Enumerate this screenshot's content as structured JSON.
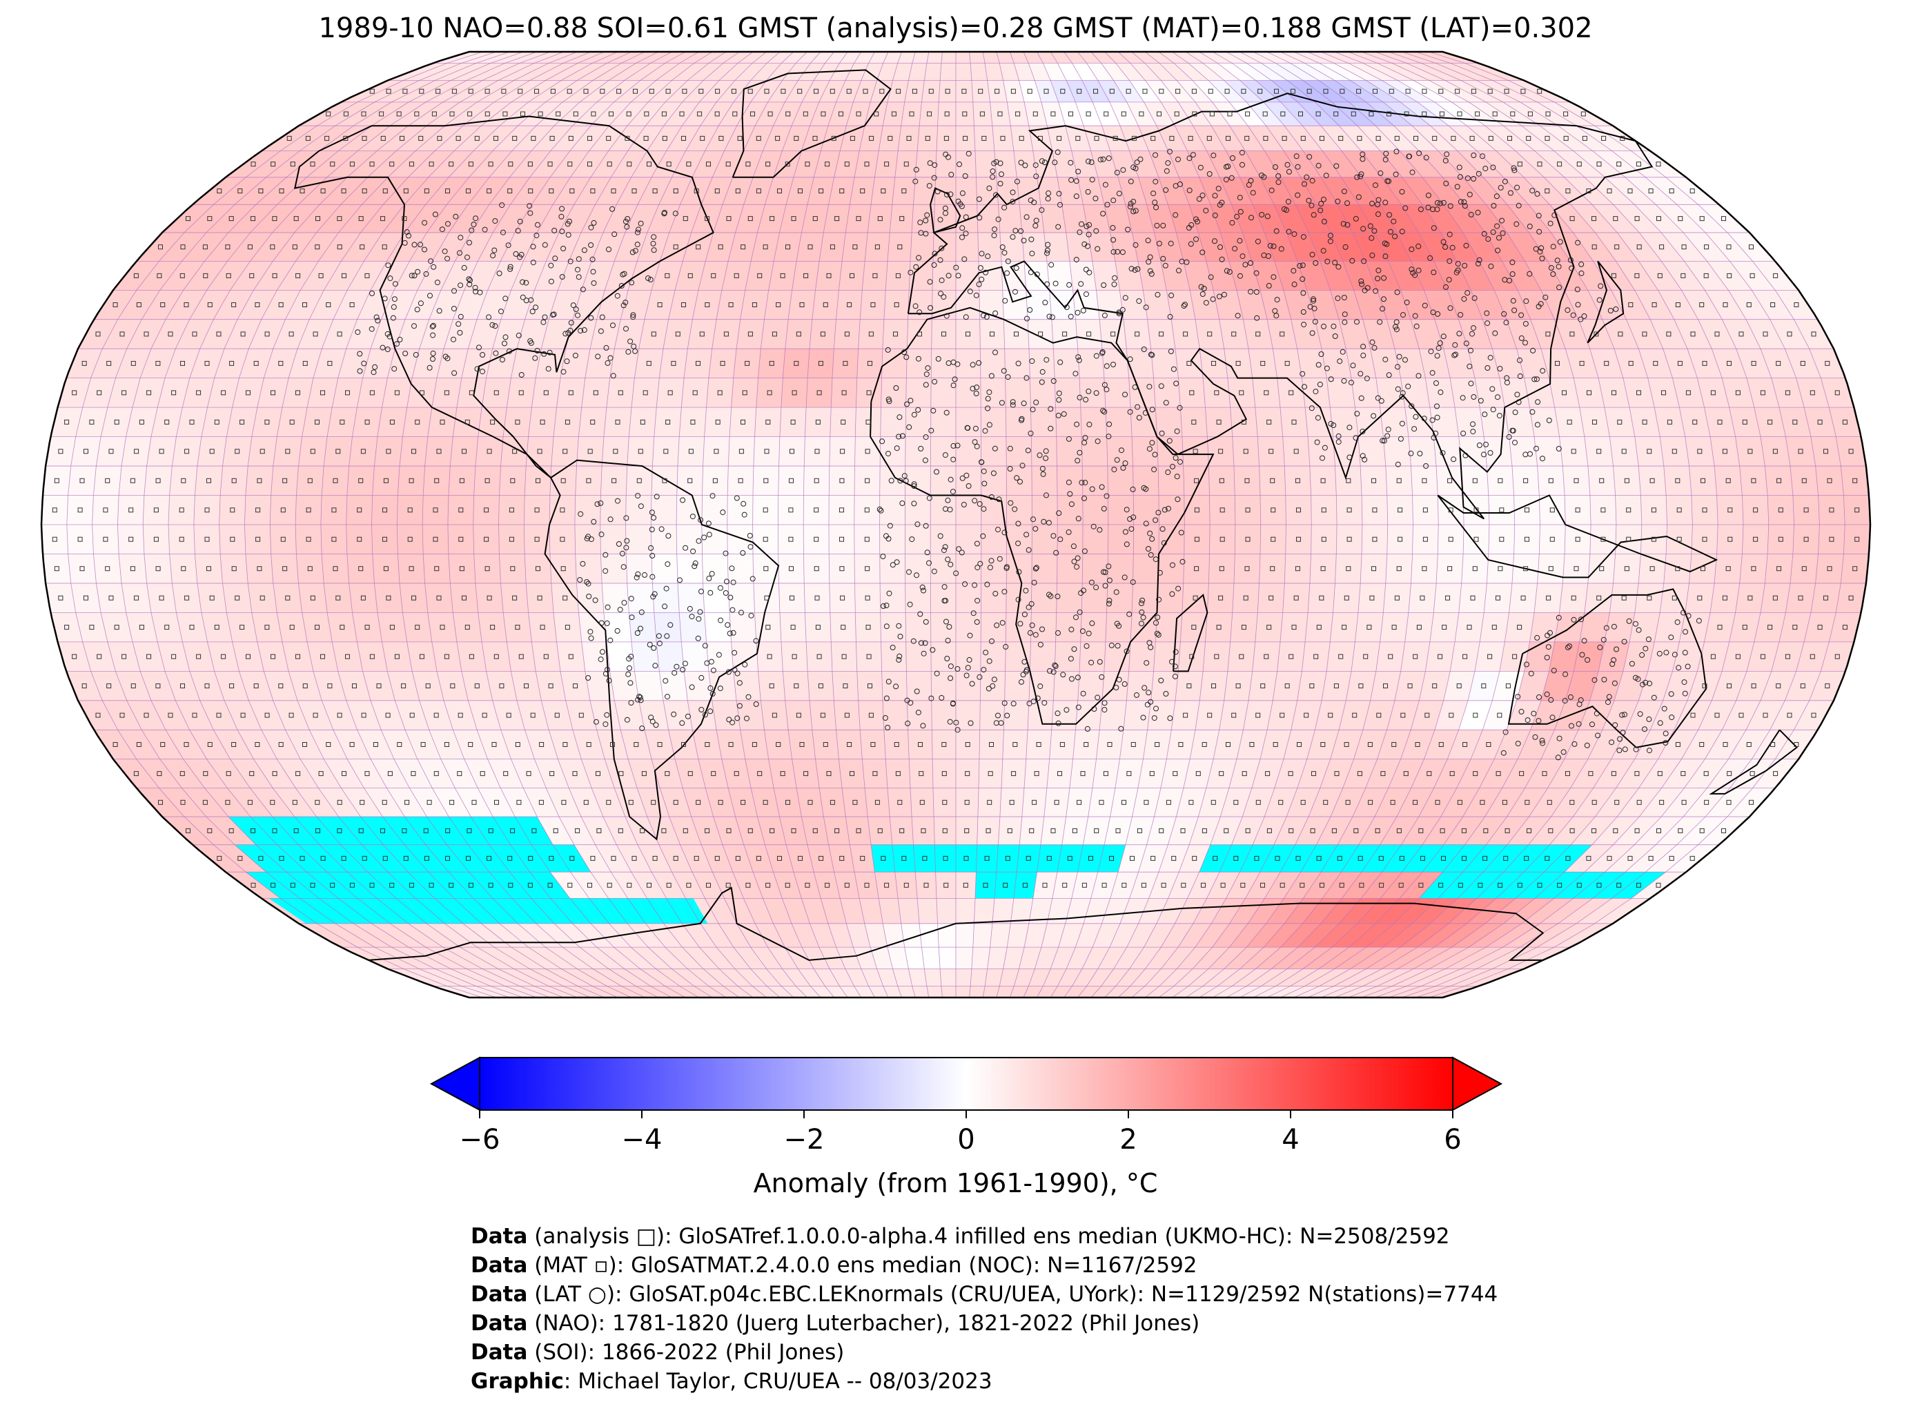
{
  "title": "1989-10 NAO=0.88 SOI=0.61 GMST (analysis)=0.28 GMST (MAT)=0.188 GMST (LAT)=0.302",
  "colorbar": {
    "ticks": [
      "−6",
      "−4",
      "−2",
      "0",
      "2",
      "4",
      "6"
    ],
    "tick_values": [
      -6,
      -4,
      -2,
      0,
      2,
      4,
      6
    ],
    "range": [
      -6,
      6
    ],
    "label": "Anomaly (from 1961-1990), °C",
    "colors": {
      "min": "#0000ff",
      "mid": "#ffffff",
      "max": "#ff0000"
    }
  },
  "map": {
    "projection": "Robinson",
    "no_data_color": "#00ffff",
    "gridline_color": "#b070c0",
    "coastline_color": "#000000",
    "markers": {
      "analysis": "square",
      "MAT": "small-square",
      "LAT": "circle"
    }
  },
  "credits": [
    {
      "key": "Data",
      "text": " (analysis □): GloSATref.1.0.0.0-alpha.4 infilled ens median (UKMO-HC): N=2508/2592"
    },
    {
      "key": "Data",
      "text": " (MAT ▫): GloSATMAT.2.4.0.0 ens median (NOC): N=1167/2592"
    },
    {
      "key": "Data",
      "text": " (LAT ○): GloSAT.p04c.EBC.LEKnormals (CRU/UEA, UYork): N=1129/2592 N(stations)=7744"
    },
    {
      "key": "Data",
      "text": " (NAO): 1781-1820 (Juerg Luterbacher), 1821-2022 (Phil Jones)"
    },
    {
      "key": "Data",
      "text": " (SOI): 1866-2022 (Phil Jones)"
    },
    {
      "key": "Graphic",
      "text": ": Michael Taylor, CRU/UEA -- 08/03/2023"
    }
  ]
}
